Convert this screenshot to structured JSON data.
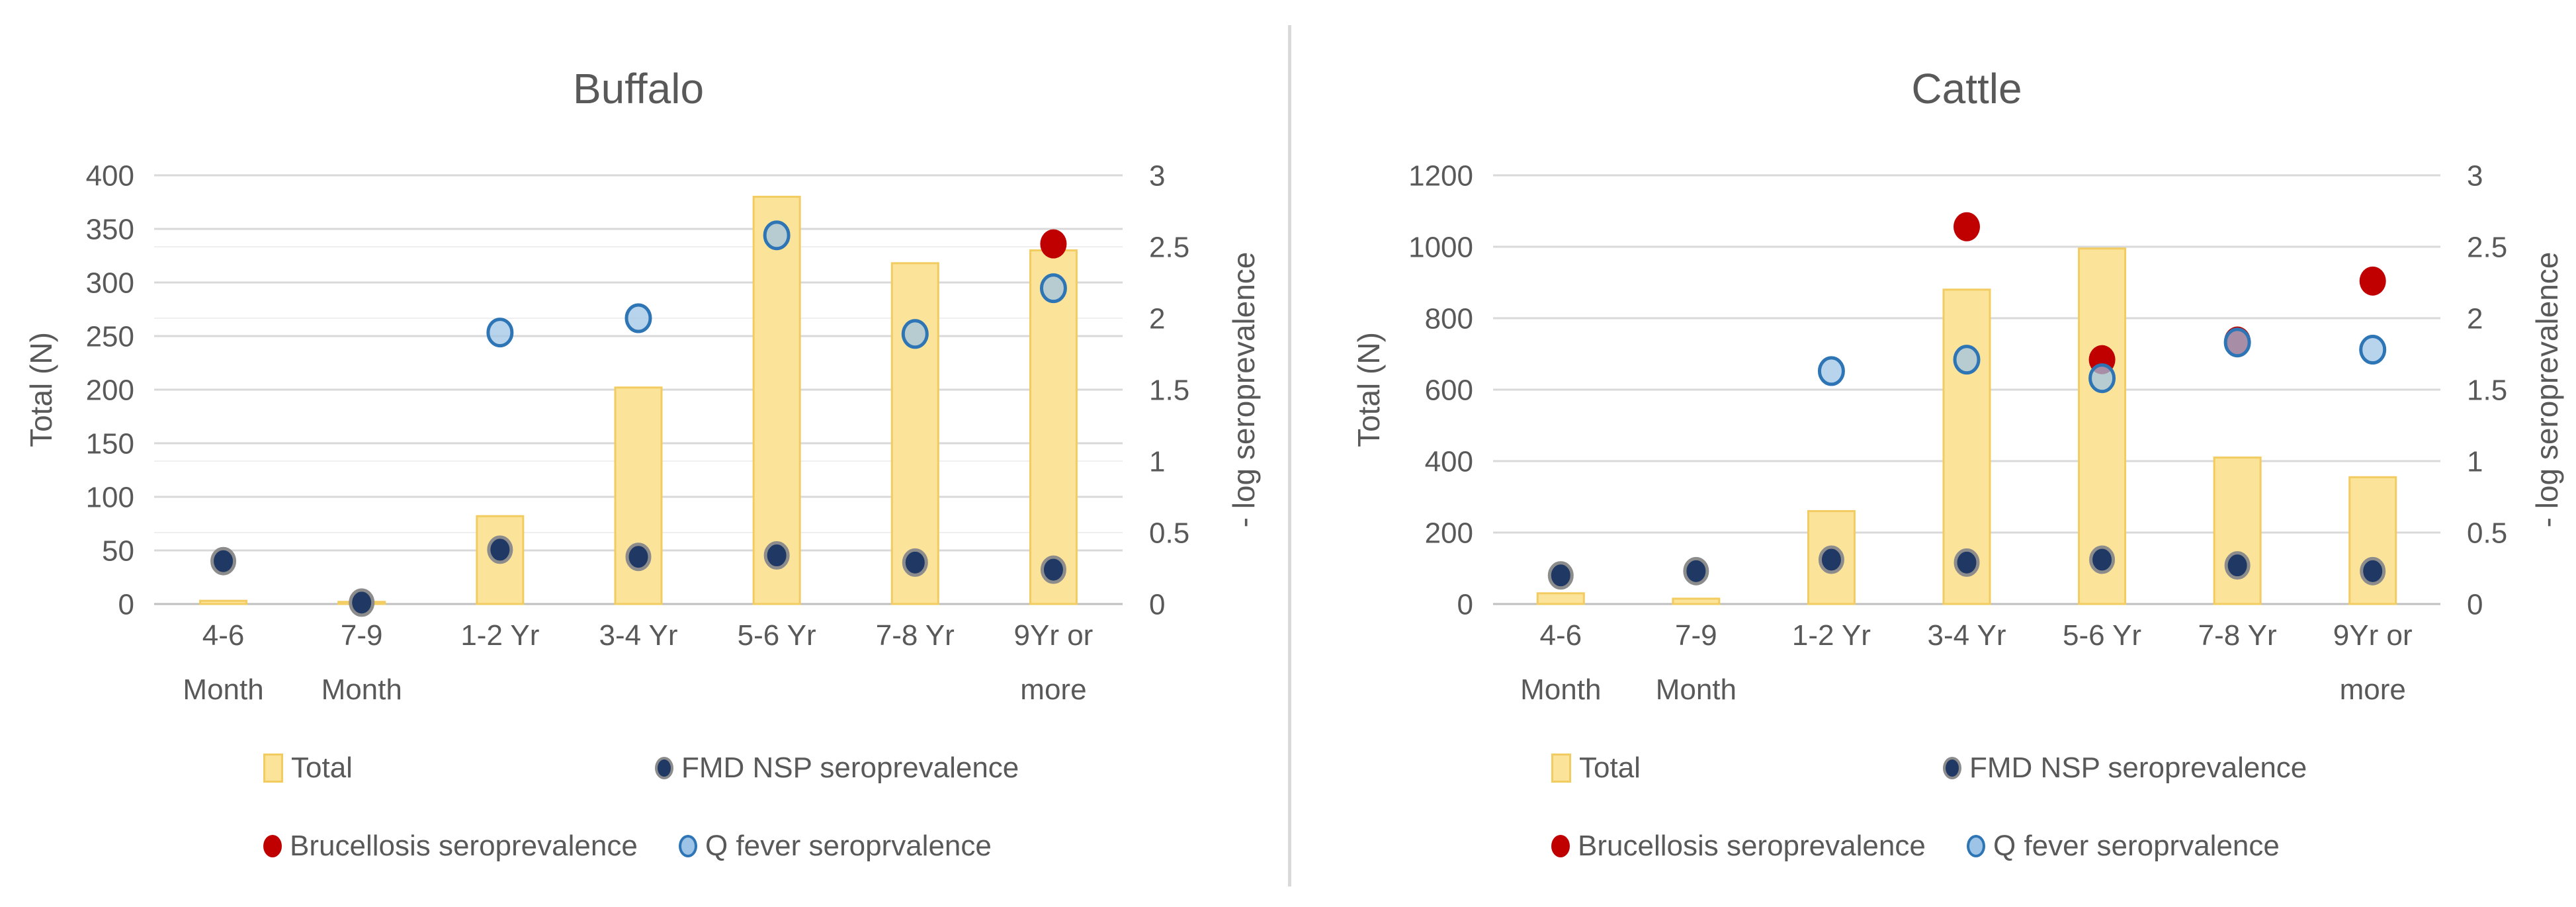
{
  "colors": {
    "bar_fill": "#FBE39A",
    "bar_border": "#F2CC60",
    "fmd_fill": "#1F3864",
    "fmd_ring": "#8C8C8C",
    "brucellosis_fill": "#C00000",
    "qfever_fill": "#9DC3E6",
    "qfever_ring": "#2E75B6",
    "text": "#595959",
    "gridline": "#D9D9D9",
    "secondary_gridline": "#EFEFEF",
    "axis_line": "#BFBFBF",
    "divider": "#D9D9D9"
  },
  "chart_data": [
    {
      "type": "bar+scatter",
      "title": "Buffalo",
      "ylabel_left": "Total (N)",
      "ylabel_right": "- log seroprevalence",
      "ylim_left": [
        0,
        400
      ],
      "ytick_step_left": 50,
      "ylim_right": [
        0,
        3
      ],
      "ytick_step_right": 0.5,
      "grid": "horizontal",
      "secondary_gridlines": true,
      "legend_position": "bottom",
      "categories": [
        "4-6\nMonth",
        "7-9\nMonth",
        "1-2 Yr",
        "3-4 Yr",
        "5-6 Yr",
        "7-8 Yr",
        "9Yr or\nmore"
      ],
      "series": [
        {
          "key": "total",
          "name": "Total",
          "type": "bar",
          "axis": "left",
          "values": [
            3,
            2,
            82,
            202,
            380,
            318,
            330
          ]
        },
        {
          "key": "fmd",
          "name": "FMD NSP seroprevalence",
          "type": "scatter",
          "axis": "right",
          "values": [
            0.3,
            0.01,
            0.38,
            0.33,
            0.34,
            0.29,
            0.24
          ]
        },
        {
          "key": "brucellosis",
          "name": "Brucellosis seroprevalence",
          "type": "scatter",
          "axis": "right",
          "values": [
            null,
            null,
            null,
            null,
            null,
            null,
            2.52
          ]
        },
        {
          "key": "qfever",
          "name": "Q fever seroprvalence",
          "type": "scatter",
          "axis": "right",
          "values": [
            null,
            null,
            1.9,
            2.0,
            2.58,
            1.89,
            2.21
          ]
        }
      ]
    },
    {
      "type": "bar+scatter",
      "title": "Cattle",
      "ylabel_left": "Total (N)",
      "ylabel_right": "- log seroprevalence",
      "ylim_left": [
        0,
        1200
      ],
      "ytick_step_left": 200,
      "ylim_right": [
        0,
        3
      ],
      "ytick_step_right": 0.5,
      "grid": "horizontal",
      "secondary_gridlines": false,
      "legend_position": "bottom",
      "categories": [
        "4-6\nMonth",
        "7-9\nMonth",
        "1-2 Yr",
        "3-4 Yr",
        "5-6 Yr",
        "7-8 Yr",
        "9Yr or\nmore"
      ],
      "series": [
        {
          "key": "total",
          "name": "Total",
          "type": "bar",
          "axis": "left",
          "values": [
            30,
            15,
            260,
            880,
            995,
            410,
            355
          ]
        },
        {
          "key": "fmd",
          "name": "FMD NSP seroprevalence",
          "type": "scatter",
          "axis": "right",
          "values": [
            0.2,
            0.23,
            0.31,
            0.29,
            0.31,
            0.27,
            0.23
          ]
        },
        {
          "key": "brucellosis",
          "name": "Brucellosis seroprevalence",
          "type": "scatter",
          "axis": "right",
          "values": [
            null,
            null,
            null,
            2.64,
            1.71,
            1.84,
            2.26
          ]
        },
        {
          "key": "qfever",
          "name": "Q fever seroprvalence",
          "type": "scatter",
          "axis": "right",
          "values": [
            null,
            null,
            1.63,
            1.71,
            1.58,
            1.83,
            1.78
          ]
        }
      ]
    }
  ]
}
